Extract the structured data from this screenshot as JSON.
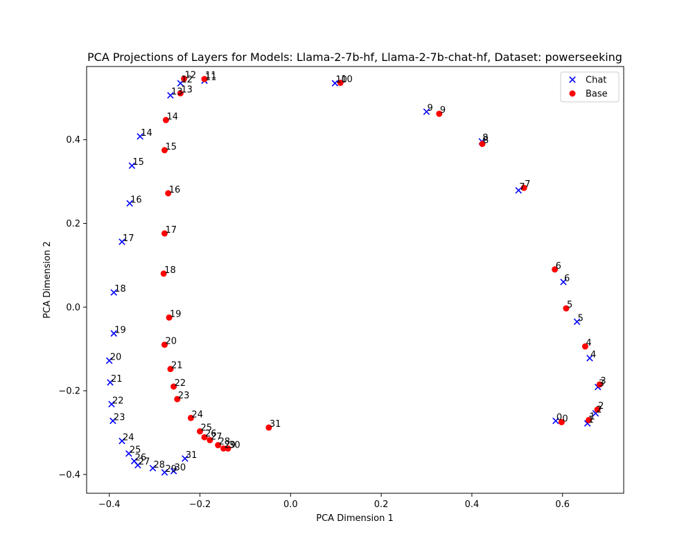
{
  "chart_data": {
    "type": "scatter",
    "title": "PCA Projections of Layers for Models: Llama-2-7b-hf, Llama-2-7b-chat-hf, Dataset: powerseeking",
    "xlabel": "PCA Dimension 1",
    "ylabel": "PCA Dimension 2",
    "xlim": [
      -0.45,
      0.735
    ],
    "ylim": [
      -0.445,
      0.575
    ],
    "xticks": [
      -0.4,
      -0.2,
      0.0,
      0.2,
      0.4,
      0.6
    ],
    "xtick_labels": [
      "−0.4",
      "−0.2",
      "0.0",
      "0.2",
      "0.4",
      "0.6"
    ],
    "yticks": [
      -0.4,
      -0.2,
      0.0,
      0.2,
      0.4
    ],
    "ytick_labels": [
      "−0.4",
      "−0.2",
      "0.0",
      "0.2",
      "0.4"
    ],
    "grid": false,
    "legend_position": "top-right",
    "series": [
      {
        "name": "Chat",
        "marker": "x",
        "color": "#0000ff",
        "points": [
          {
            "label": "0",
            "x": 0.585,
            "y": -0.272
          },
          {
            "label": "1",
            "x": 0.655,
            "y": -0.278
          },
          {
            "label": "2",
            "x": 0.673,
            "y": -0.254
          },
          {
            "label": "3",
            "x": 0.678,
            "y": -0.191
          },
          {
            "label": "4",
            "x": 0.66,
            "y": -0.122
          },
          {
            "label": "5",
            "x": 0.632,
            "y": -0.035
          },
          {
            "label": "6",
            "x": 0.602,
            "y": 0.06
          },
          {
            "label": "7",
            "x": 0.503,
            "y": 0.279
          },
          {
            "label": "8",
            "x": 0.422,
            "y": 0.396
          },
          {
            "label": "9",
            "x": 0.3,
            "y": 0.467
          },
          {
            "label": "10",
            "x": 0.098,
            "y": 0.535
          },
          {
            "label": "11",
            "x": -0.19,
            "y": 0.541
          },
          {
            "label": "12",
            "x": -0.243,
            "y": 0.535
          },
          {
            "label": "13",
            "x": -0.265,
            "y": 0.506
          },
          {
            "label": "14",
            "x": -0.332,
            "y": 0.408
          },
          {
            "label": "15",
            "x": -0.35,
            "y": 0.338
          },
          {
            "label": "16",
            "x": -0.355,
            "y": 0.248
          },
          {
            "label": "17",
            "x": -0.372,
            "y": 0.156
          },
          {
            "label": "18",
            "x": -0.39,
            "y": 0.035
          },
          {
            "label": "19",
            "x": -0.39,
            "y": -0.063
          },
          {
            "label": "20",
            "x": -0.4,
            "y": -0.128
          },
          {
            "label": "21",
            "x": -0.398,
            "y": -0.18
          },
          {
            "label": "22",
            "x": -0.395,
            "y": -0.232
          },
          {
            "label": "23",
            "x": -0.392,
            "y": -0.272
          },
          {
            "label": "24",
            "x": -0.372,
            "y": -0.32
          },
          {
            "label": "25",
            "x": -0.357,
            "y": -0.35
          },
          {
            "label": "26",
            "x": -0.345,
            "y": -0.368
          },
          {
            "label": "27",
            "x": -0.337,
            "y": -0.378
          },
          {
            "label": "28",
            "x": -0.304,
            "y": -0.385
          },
          {
            "label": "29",
            "x": -0.278,
            "y": -0.395
          },
          {
            "label": "30",
            "x": -0.258,
            "y": -0.392
          },
          {
            "label": "31",
            "x": -0.233,
            "y": -0.362
          }
        ]
      },
      {
        "name": "Base",
        "marker": "o",
        "color": "#ff0000",
        "points": [
          {
            "label": "0",
            "x": 0.598,
            "y": -0.275
          },
          {
            "label": "1",
            "x": 0.658,
            "y": -0.27
          },
          {
            "label": "2",
            "x": 0.677,
            "y": -0.245
          },
          {
            "label": "3",
            "x": 0.682,
            "y": -0.185
          },
          {
            "label": "4",
            "x": 0.65,
            "y": -0.094
          },
          {
            "label": "5",
            "x": 0.608,
            "y": -0.003
          },
          {
            "label": "6",
            "x": 0.583,
            "y": 0.09
          },
          {
            "label": "7",
            "x": 0.515,
            "y": 0.285
          },
          {
            "label": "8",
            "x": 0.423,
            "y": 0.39
          },
          {
            "label": "9",
            "x": 0.328,
            "y": 0.462
          },
          {
            "label": "10",
            "x": 0.11,
            "y": 0.536
          },
          {
            "label": "11",
            "x": -0.19,
            "y": 0.545
          },
          {
            "label": "12",
            "x": -0.235,
            "y": 0.546
          },
          {
            "label": "13",
            "x": -0.243,
            "y": 0.511
          },
          {
            "label": "14",
            "x": -0.275,
            "y": 0.447
          },
          {
            "label": "15",
            "x": -0.278,
            "y": 0.375
          },
          {
            "label": "16",
            "x": -0.27,
            "y": 0.272
          },
          {
            "label": "17",
            "x": -0.278,
            "y": 0.176
          },
          {
            "label": "18",
            "x": -0.28,
            "y": 0.08
          },
          {
            "label": "19",
            "x": -0.268,
            "y": -0.025
          },
          {
            "label": "20",
            "x": -0.278,
            "y": -0.09
          },
          {
            "label": "21",
            "x": -0.265,
            "y": -0.148
          },
          {
            "label": "22",
            "x": -0.258,
            "y": -0.19
          },
          {
            "label": "23",
            "x": -0.25,
            "y": -0.22
          },
          {
            "label": "24",
            "x": -0.22,
            "y": -0.265
          },
          {
            "label": "25",
            "x": -0.2,
            "y": -0.297
          },
          {
            "label": "26",
            "x": -0.19,
            "y": -0.311
          },
          {
            "label": "27",
            "x": -0.178,
            "y": -0.318
          },
          {
            "label": "28",
            "x": -0.16,
            "y": -0.33
          },
          {
            "label": "29",
            "x": -0.148,
            "y": -0.338
          },
          {
            "label": "30",
            "x": -0.138,
            "y": -0.338
          },
          {
            "label": "31",
            "x": -0.048,
            "y": -0.288
          }
        ]
      }
    ]
  }
}
